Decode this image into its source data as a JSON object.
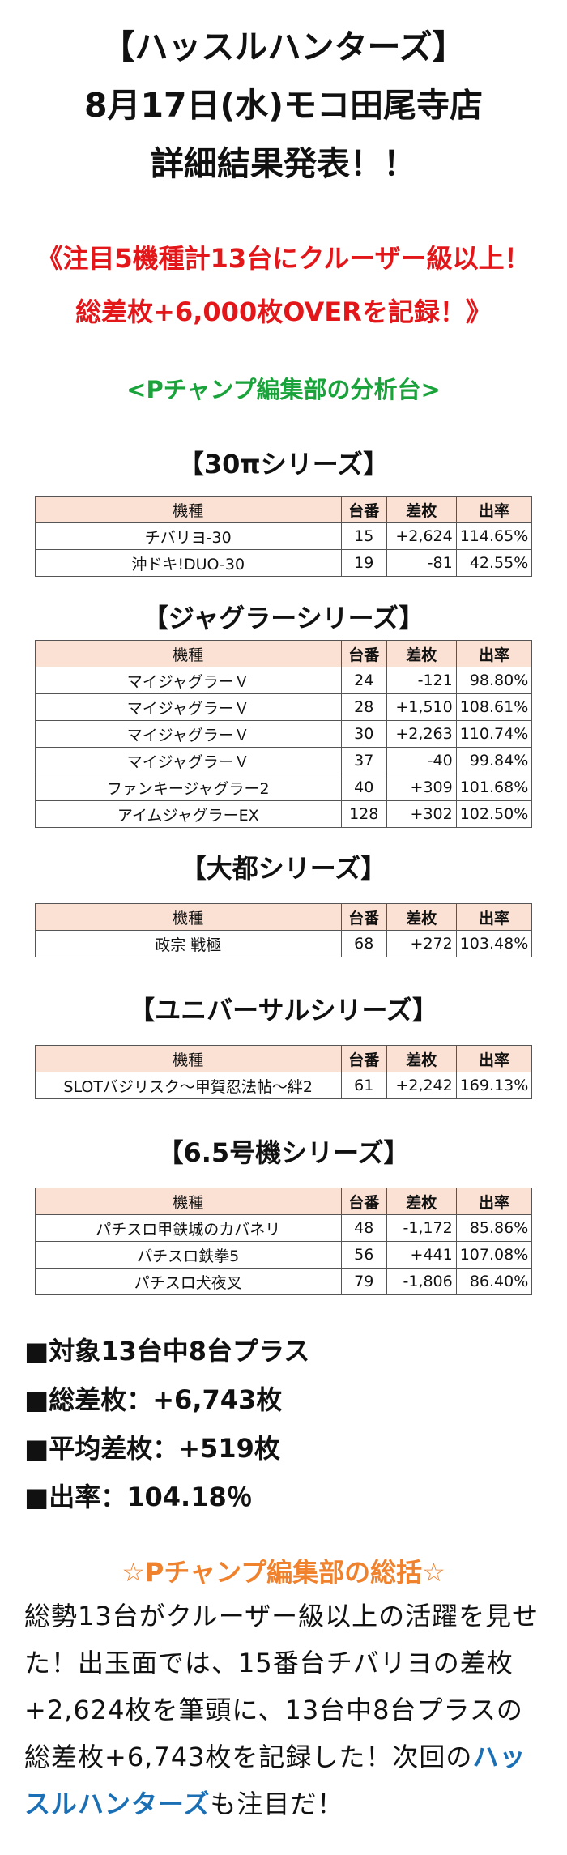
{
  "header": {
    "line1": "【ハッスルハンターズ】",
    "line2": "8月17日(水)モコ田尾寺店",
    "line3": "詳細結果発表！！"
  },
  "highlight": {
    "line1": "《注目5機種計13台にクルーザー級以上！",
    "line2": "総差枚+6,000枚OVERを記録！》"
  },
  "subtitle": "<Pチャンプ編集部の分析台>",
  "columns": {
    "machine": "機種",
    "number": "台番",
    "diff": "差枚",
    "rate": "出率"
  },
  "sections": [
    {
      "title": "【30πシリーズ】",
      "rows": [
        {
          "machine": "チバリヨ-30",
          "number": "15",
          "diff": "+2,624",
          "rate": "114.65%"
        },
        {
          "machine": "沖ドキ!DUO-30",
          "number": "19",
          "diff": "-81",
          "rate": "42.55%"
        }
      ]
    },
    {
      "title": "【ジャグラーシリーズ】",
      "rows": [
        {
          "machine": "マイジャグラーＶ",
          "number": "24",
          "diff": "-121",
          "rate": "98.80%"
        },
        {
          "machine": "マイジャグラーＶ",
          "number": "28",
          "diff": "+1,510",
          "rate": "108.61%"
        },
        {
          "machine": "マイジャグラーＶ",
          "number": "30",
          "diff": "+2,263",
          "rate": "110.74%"
        },
        {
          "machine": "マイジャグラーＶ",
          "number": "37",
          "diff": "-40",
          "rate": "99.84%"
        },
        {
          "machine": "ファンキージャグラー2",
          "number": "40",
          "diff": "+309",
          "rate": "101.68%"
        },
        {
          "machine": "アイムジャグラーEX",
          "number": "128",
          "diff": "+302",
          "rate": "102.50%"
        }
      ]
    },
    {
      "title": "【大都シリーズ】",
      "rows": [
        {
          "machine": "政宗 戦極",
          "number": "68",
          "diff": "+272",
          "rate": "103.48%"
        }
      ]
    },
    {
      "title": "【ユニバーサルシリーズ】",
      "rows": [
        {
          "machine": "SLOTバジリスク～甲賀忍法帖～絆2",
          "number": "61",
          "diff": "+2,242",
          "rate": "169.13%"
        }
      ]
    },
    {
      "title": "【6.5号機シリーズ】",
      "rows": [
        {
          "machine": "パチスロ甲鉄城のカバネリ",
          "number": "48",
          "diff": "-1,172",
          "rate": "85.86%"
        },
        {
          "machine": "パチスロ鉄拳5",
          "number": "56",
          "diff": "+441",
          "rate": "107.08%"
        },
        {
          "machine": "パチスロ犬夜叉",
          "number": "79",
          "diff": "-1,806",
          "rate": "86.40%"
        }
      ]
    }
  ],
  "summary": [
    "■対象13台中8台プラス",
    "■総差枚：+6,743枚",
    "■平均差枚：+519枚",
    "■出率：104.18％"
  ],
  "commentary": {
    "title": "☆Pチャンプ編集部の総括☆",
    "text_before": "総勢13台がクルーザー級以上の活躍を見せた！出玉面では、15番台チバリヨの差枚+2,624枚を筆頭に、13台中8台プラスの総差枚+6,743枚を記録した！次回の",
    "link": "ハッスルハンターズ",
    "text_after": "も注目だ！"
  }
}
